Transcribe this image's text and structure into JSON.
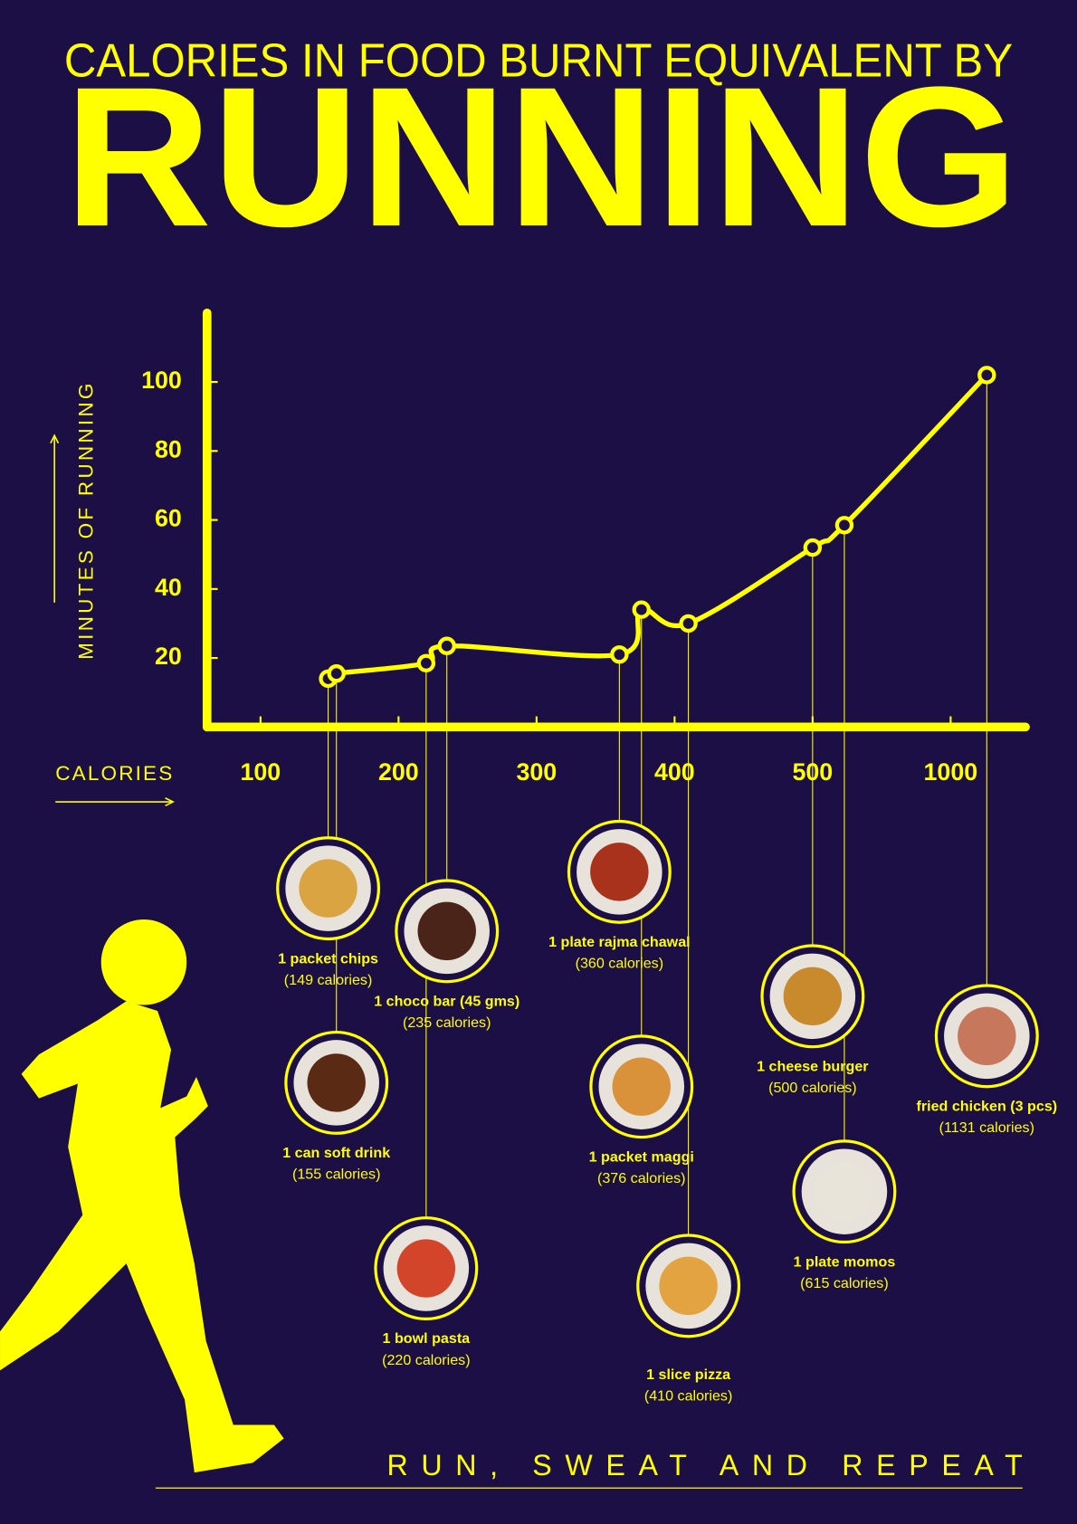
{
  "chart_data": {
    "type": "line",
    "title": "CALORIES IN FOOD BURNT EQUIVALENT BY",
    "subtitle": "RUNNING",
    "y_label": "MINUTES OF RUNNING",
    "x_label": "CALORIES",
    "footer": "RUN, SWEAT AND REPEAT",
    "color": "#ffff00",
    "background": "#1c0f45",
    "x": [
      149,
      155,
      220,
      235,
      360,
      376,
      410,
      500,
      615,
      1131
    ],
    "x_labels": [
      "(149 calories)",
      "(155 calories)",
      "(220 calories)",
      "(235 calories)",
      "(360 calories)",
      "(376 calories)",
      "(410 calories)",
      "(500 calories)",
      "(615 calories)",
      "(1131 calories)"
    ],
    "labels": [
      "1 packet chips",
      "1 can soft drink",
      "1 bowl pasta",
      "1 choco bar (45 gms)",
      "1 plate rajma chawal",
      "1 packet maggi",
      "1 slice pizza",
      "1 cheese burger",
      "1 plate momos",
      "fried chicken (3 pcs)"
    ],
    "values": [
      14,
      15.5,
      18.5,
      23.5,
      21,
      34,
      30,
      52,
      58.5,
      102
    ],
    "xscale": "uneven",
    "xlim": [
      61,
      1275
    ],
    "xticks": [
      100,
      200,
      300,
      400,
      500,
      1000
    ],
    "ylim": [
      0,
      120
    ],
    "yticks": [
      20,
      40,
      60,
      80,
      100
    ]
  }
}
